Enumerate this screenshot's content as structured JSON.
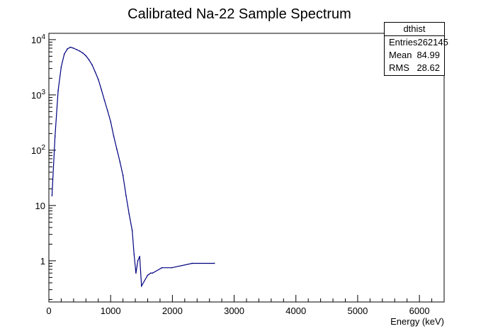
{
  "chart_data": {
    "type": "histogram",
    "title": "Calibrated Na-22 Sample Spectrum",
    "xlabel": "Energy (keV)",
    "ylabel": "",
    "xlim": [
      0,
      6400
    ],
    "ylim": [
      0.18,
      13000
    ],
    "yscale": "log",
    "grid": false,
    "line_color": "#000080",
    "x_ticks": [
      0,
      1000,
      2000,
      3000,
      4000,
      5000,
      6000
    ],
    "y_ticks": [
      {
        "value": 1,
        "base": "1",
        "exp": ""
      },
      {
        "value": 10,
        "base": "10",
        "exp": ""
      },
      {
        "value": 100,
        "base": "10",
        "exp": "2"
      },
      {
        "value": 1000,
        "base": "10",
        "exp": "3"
      },
      {
        "value": 10000,
        "base": "10",
        "exp": "4"
      }
    ],
    "series": [
      {
        "x": [
          50,
          100,
          150,
          200,
          250,
          300,
          350,
          400,
          450,
          500,
          550,
          600,
          650,
          700,
          750,
          800,
          850,
          900,
          950,
          1000,
          1050,
          1100,
          1150,
          1200,
          1250,
          1300,
          1350,
          1380,
          1410,
          1440,
          1470,
          1500,
          1600,
          1650,
          1680,
          1830,
          1990,
          2320,
          2680
        ],
        "y": [
          15,
          180,
          1200,
          3200,
          5500,
          6800,
          7300,
          7000,
          6600,
          6200,
          5700,
          5100,
          4300,
          3500,
          2600,
          1900,
          1250,
          800,
          520,
          330,
          180,
          105,
          62,
          35,
          15,
          7,
          3.5,
          1.3,
          0.6,
          1,
          1.2,
          0.35,
          0.55,
          0.6,
          0.6,
          0.75,
          0.75,
          0.9,
          0.9
        ]
      }
    ]
  },
  "stats_box": {
    "name": "dthist",
    "rows": [
      {
        "label": "Entries",
        "value": "262145"
      },
      {
        "label": "Mean",
        "value": "84.99"
      },
      {
        "label": "RMS",
        "value": "28.62"
      }
    ]
  }
}
